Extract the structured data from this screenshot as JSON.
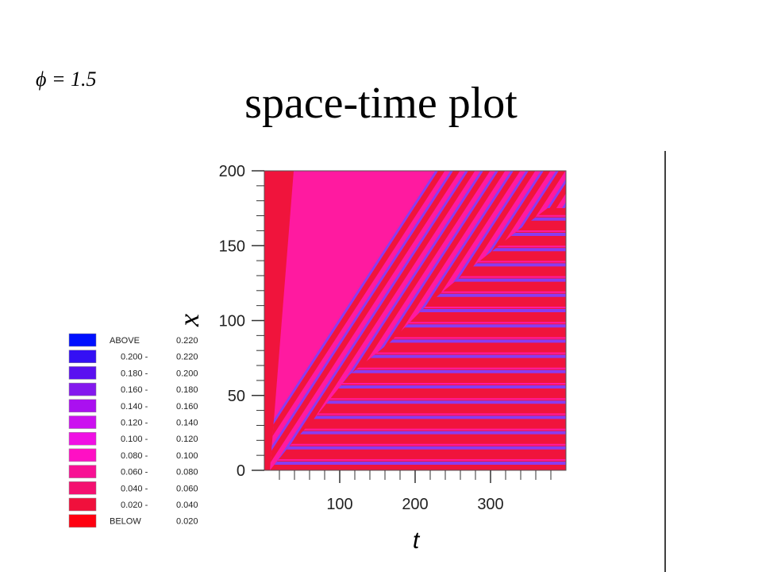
{
  "chart_data": {
    "type": "heatmap",
    "title": "space-time plot",
    "annotation": "ϕ = 1.5",
    "xlabel": "t",
    "ylabel": "x",
    "xlim": [
      0,
      400
    ],
    "ylim": [
      0,
      200
    ],
    "xticks": [
      100,
      200,
      300
    ],
    "yticks": [
      0,
      50,
      100,
      150,
      200
    ],
    "legend": [
      {
        "color": "#0010ff",
        "from": "ABOVE",
        "to": "0.220"
      },
      {
        "color": "#3410f4",
        "from": "0.200 -",
        "to": "0.220"
      },
      {
        "color": "#5a10f0",
        "from": "0.180 -",
        "to": "0.200"
      },
      {
        "color": "#8418ee",
        "from": "0.160 -",
        "to": "0.180"
      },
      {
        "color": "#aa10f0",
        "from": "0.140 -",
        "to": "0.160"
      },
      {
        "color": "#cc10f0",
        "from": "0.120 -",
        "to": "0.140"
      },
      {
        "color": "#f010e4",
        "from": "0.100 -",
        "to": "0.120"
      },
      {
        "color": "#ff10c4",
        "from": "0.080 -",
        "to": "0.100"
      },
      {
        "color": "#f81094",
        "from": "0.060 -",
        "to": "0.080"
      },
      {
        "color": "#f41070",
        "from": "0.040 -",
        "to": "0.060"
      },
      {
        "color": "#f0103c",
        "from": "0.020 -",
        "to": "0.040"
      },
      {
        "color": "#ff0010",
        "from": "BELOW",
        "to": "0.020"
      }
    ]
  }
}
